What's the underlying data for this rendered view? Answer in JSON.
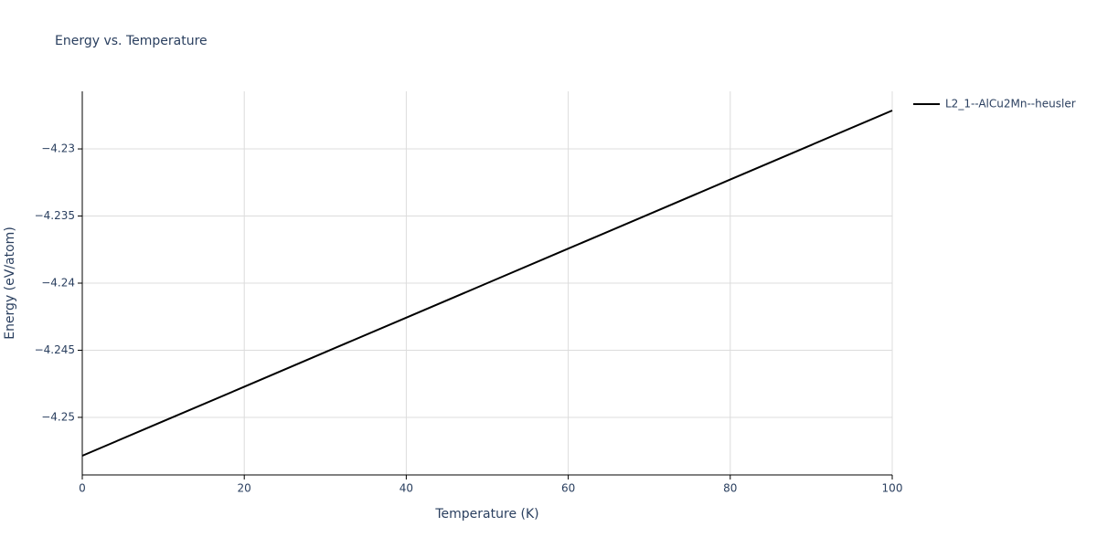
{
  "chart_data": {
    "type": "line",
    "title": "Energy vs. Temperature",
    "x_label": "Temperature (K)",
    "y_label": "Energy (eV/atom)",
    "x": [
      0,
      10,
      20,
      30,
      40,
      50,
      60,
      70,
      80,
      90,
      100
    ],
    "series": [
      {
        "name": "L2_1--AlCu2Mn--heusler",
        "color": "#000000",
        "values": [
          -4.25286,
          -4.25029,
          -4.24772,
          -4.24514,
          -4.24257,
          -4.24,
          -4.23743,
          -4.23486,
          -4.23228,
          -4.22971,
          -4.22714
        ]
      }
    ],
    "xlim": [
      0,
      100
    ],
    "xticks": [
      0,
      20,
      40,
      60,
      80,
      100
    ],
    "ylim": [
      -4.25429,
      -4.22571
    ],
    "yticks": [
      {
        "value": -4.25,
        "label": "−4.25"
      },
      {
        "value": -4.245,
        "label": "−4.245"
      },
      {
        "value": -4.24,
        "label": "−4.24"
      },
      {
        "value": -4.235,
        "label": "−4.235"
      },
      {
        "value": -4.23,
        "label": "−4.23"
      }
    ],
    "grid": true,
    "legend": "right"
  }
}
